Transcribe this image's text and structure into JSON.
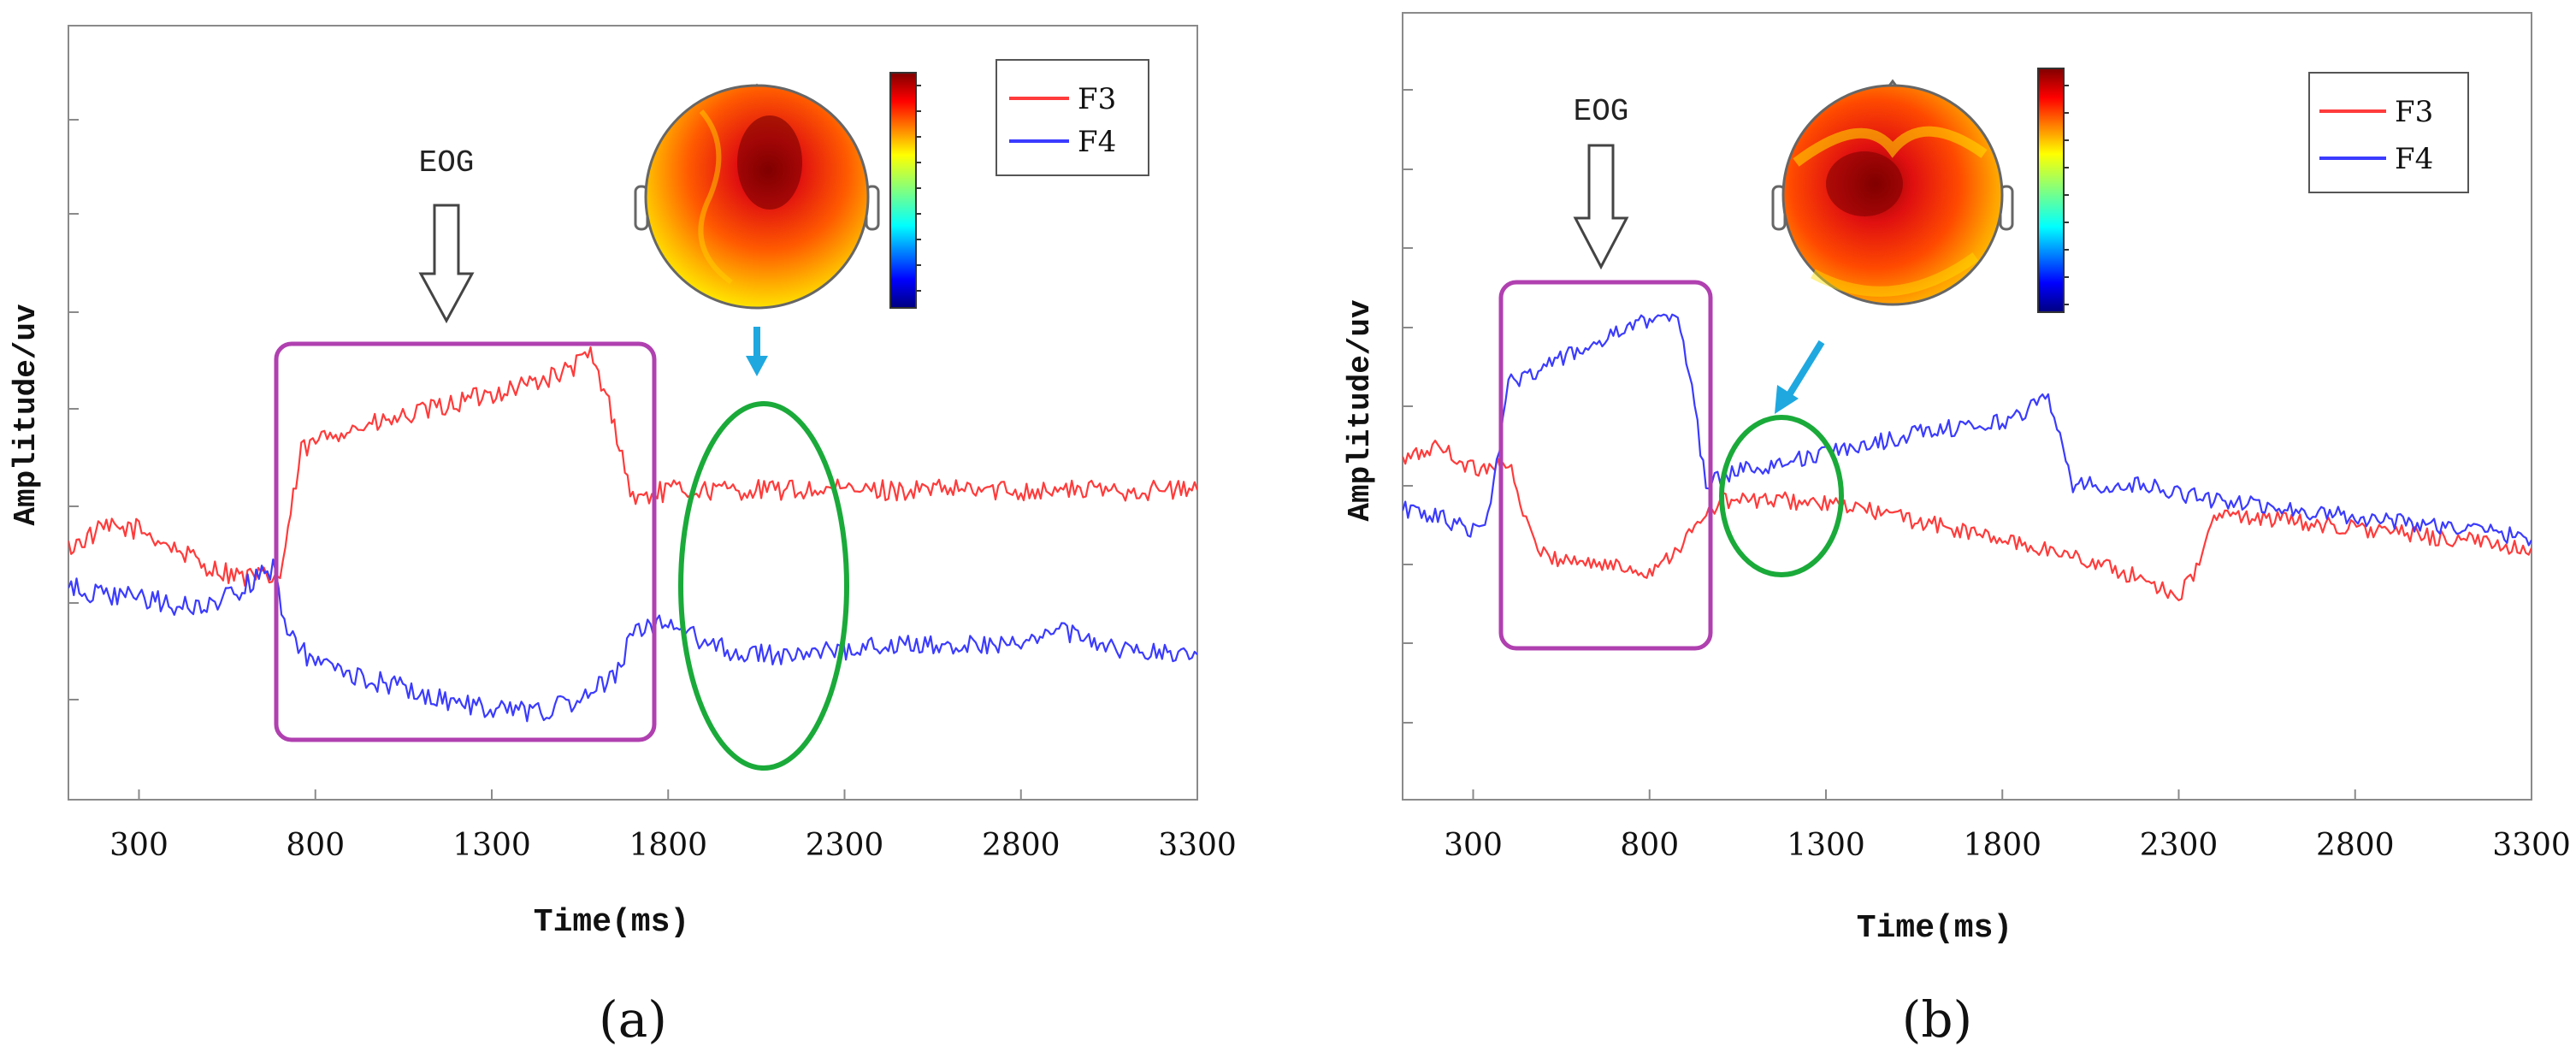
{
  "chart_data": [
    {
      "panel_label": "(a)",
      "type": "line",
      "xlabel": "Time(ms)",
      "ylabel": "Amplitude/uv",
      "xlim": [
        100,
        3300
      ],
      "xticks": [
        300,
        800,
        1300,
        1800,
        2300,
        2800,
        3300
      ],
      "ylim": [
        0,
        8
      ],
      "yticks": [
        1,
        2,
        3,
        4,
        5,
        6,
        7,
        8
      ],
      "y_ticks_labeled": false,
      "grid": false,
      "legend": {
        "position": "top-right",
        "entries": [
          "F3",
          "F4"
        ]
      },
      "annotations": {
        "eog_label": "EOG"
      },
      "series": [
        {
          "name": "F3",
          "color": "#ff3b3b",
          "x": [
            100,
            200,
            300,
            400,
            500,
            600,
            700,
            760,
            850,
            1000,
            1200,
            1400,
            1500,
            1580,
            1640,
            1700,
            1800,
            2000,
            2200,
            2400,
            2600,
            2800,
            3000,
            3200,
            3300
          ],
          "y": [
            2.6,
            2.8,
            2.8,
            2.6,
            2.4,
            2.3,
            2.3,
            3.6,
            3.8,
            3.9,
            4.1,
            4.3,
            4.4,
            4.6,
            4.0,
            3.1,
            3.2,
            3.2,
            3.2,
            3.2,
            3.2,
            3.2,
            3.2,
            3.2,
            3.2
          ]
        },
        {
          "name": "F4",
          "color": "#3b3bff",
          "x": [
            100,
            200,
            300,
            400,
            500,
            600,
            680,
            720,
            800,
            1000,
            1200,
            1400,
            1550,
            1650,
            1700,
            1750,
            1800,
            2000,
            2200,
            2400,
            2600,
            2800,
            2900,
            3000,
            3200,
            3300
          ],
          "y": [
            2.2,
            2.1,
            2.1,
            2.0,
            2.0,
            2.2,
            2.4,
            1.7,
            1.4,
            1.2,
            1.0,
            0.9,
            1.0,
            1.3,
            1.7,
            1.8,
            1.8,
            1.5,
            1.5,
            1.6,
            1.6,
            1.6,
            1.8,
            1.6,
            1.5,
            1.5
          ]
        }
      ]
    },
    {
      "panel_label": "(b)",
      "type": "line",
      "xlabel": "Time(ms)",
      "ylabel": "Amplitude/uv",
      "xlim": [
        100,
        3300
      ],
      "xticks": [
        300,
        800,
        1300,
        1800,
        2300,
        2800,
        3300
      ],
      "ylim": [
        0,
        10
      ],
      "yticks": [
        1,
        2,
        3,
        4,
        5,
        6,
        7,
        8,
        9,
        10
      ],
      "y_ticks_labeled": false,
      "grid": false,
      "legend": {
        "position": "top-right",
        "entries": [
          "F3",
          "F4"
        ]
      },
      "annotations": {
        "eog_label": "EOG"
      },
      "series": [
        {
          "name": "F3",
          "color": "#ff3b3b",
          "x": [
            100,
            200,
            300,
            400,
            450,
            500,
            650,
            800,
            880,
            1000,
            1200,
            1400,
            1600,
            1800,
            2000,
            2200,
            2300,
            2350,
            2400,
            2500,
            2700,
            2900,
            3100,
            3300
          ],
          "y": [
            4.3,
            4.5,
            4.2,
            4.3,
            3.5,
            3.1,
            3.0,
            2.9,
            3.2,
            3.8,
            3.8,
            3.7,
            3.5,
            3.3,
            3.1,
            2.8,
            2.6,
            2.9,
            3.6,
            3.6,
            3.5,
            3.4,
            3.3,
            3.2
          ]
        },
        {
          "name": "F4",
          "color": "#3b3bff",
          "x": [
            100,
            200,
            300,
            350,
            400,
            500,
            650,
            800,
            880,
            920,
            960,
            1050,
            1200,
            1400,
            1600,
            1800,
            1930,
            1980,
            2000,
            2200,
            2400,
            2600,
            2800,
            3000,
            3200,
            3300
          ],
          "y": [
            3.7,
            3.6,
            3.4,
            3.7,
            5.3,
            5.5,
            5.8,
            6.1,
            6.2,
            5.2,
            4.0,
            4.2,
            4.3,
            4.5,
            4.7,
            4.8,
            5.1,
            4.4,
            4.0,
            4.0,
            3.8,
            3.7,
            3.6,
            3.5,
            3.4,
            3.3
          ]
        }
      ]
    }
  ]
}
